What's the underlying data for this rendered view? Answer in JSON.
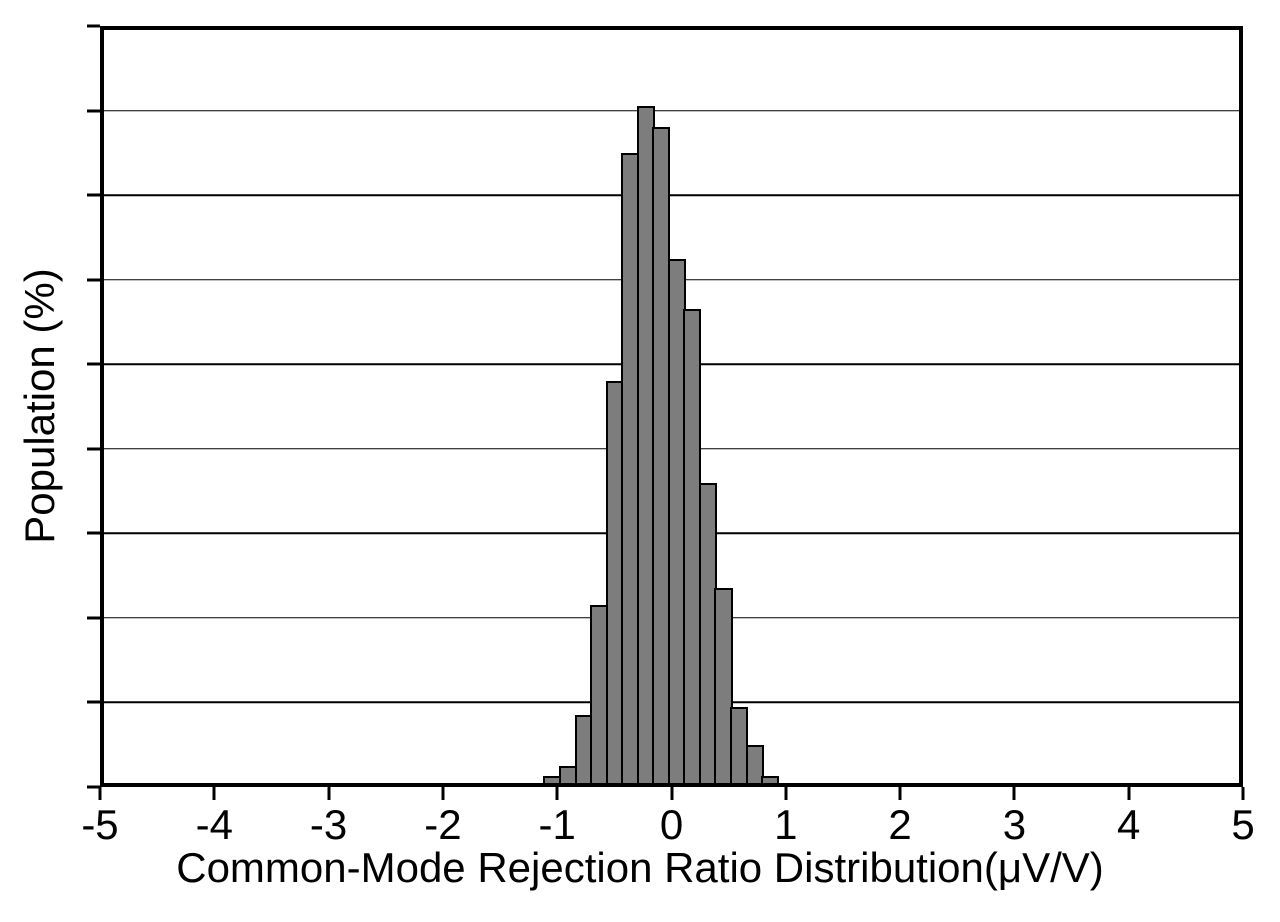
{
  "figure": {
    "background": "#ffffff",
    "text_color": "#000000"
  },
  "chart_data": {
    "type": "bar",
    "subtype": "histogram",
    "title": "",
    "xlabel": "Common-Mode Rejection Ratio Distribution(μV/V)",
    "ylabel": "Population (%)",
    "xlim": [
      -5,
      5
    ],
    "ylim": [
      0,
      18
    ],
    "x_ticks": [
      -5,
      -4,
      -3,
      -2,
      -1,
      0,
      1,
      2,
      3,
      4,
      5
    ],
    "x_tick_labels": [
      "-5",
      "-4",
      "-3",
      "-2",
      "-1",
      "0",
      "1",
      "2",
      "3",
      "4",
      "5"
    ],
    "y_tick_step": 2,
    "y_tick_labels_shown": false,
    "grid": "horizontal",
    "legend": "none",
    "bar_color": "#7d7d7d",
    "bar_edge_color": "#000000",
    "axis_color": "#000000",
    "bin_width": 0.136,
    "bins": [
      {
        "x_left": -1.12,
        "value": 0.25
      },
      {
        "x_left": -0.984,
        "value": 0.5
      },
      {
        "x_left": -0.848,
        "value": 1.7
      },
      {
        "x_left": -0.712,
        "value": 4.3
      },
      {
        "x_left": -0.576,
        "value": 9.6
      },
      {
        "x_left": -0.44,
        "value": 15.0
      },
      {
        "x_left": -0.304,
        "value": 16.1
      },
      {
        "x_left": -0.168,
        "value": 15.6
      },
      {
        "x_left": -0.032,
        "value": 12.5
      },
      {
        "x_left": 0.104,
        "value": 11.3
      },
      {
        "x_left": 0.24,
        "value": 7.2
      },
      {
        "x_left": 0.376,
        "value": 4.7
      },
      {
        "x_left": 0.512,
        "value": 1.9
      },
      {
        "x_left": 0.648,
        "value": 1.0
      },
      {
        "x_left": 0.784,
        "value": 0.25
      }
    ]
  }
}
